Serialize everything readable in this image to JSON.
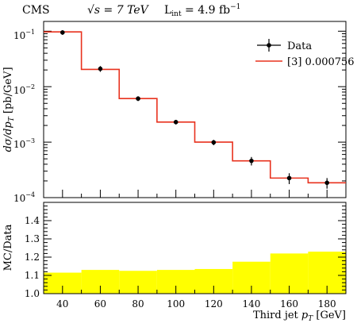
{
  "header": {
    "experiment": "CMS",
    "energy": "√s = 7 TeV",
    "lumi": "L",
    "lumi_sub": "int",
    "lumi_value": " = 4.9 fb",
    "lumi_sup": "−1"
  },
  "colors": {
    "data_marker": "#000000",
    "prediction_line": "#e8321e",
    "ratio_band": "#ffff00"
  },
  "chart_data": [
    {
      "type": "line",
      "panel": "main",
      "ylabel": "dσ/dp_T [pb/GeV]",
      "yscale": "log",
      "ylim": [
        0.0001,
        0.15
      ],
      "xlim": [
        30,
        190
      ],
      "ytick_labels": [
        "10^-1",
        "10^-2",
        "10^-3",
        "10^-4"
      ],
      "bin_edges": [
        30,
        50,
        70,
        90,
        110,
        130,
        150,
        170,
        190
      ],
      "legend": {
        "position": "top-right"
      },
      "series": [
        {
          "name": "Data",
          "style": "points-with-errors",
          "x": [
            40,
            60,
            80,
            100,
            120,
            140,
            160,
            180
          ],
          "y": [
            0.095,
            0.021,
            0.0061,
            0.0023,
            0.00099,
            0.00046,
            0.000225,
            0.000185
          ],
          "err": [
            0.009,
            0.0025,
            0.0006,
            0.00022,
            0.00011,
            8e-05,
            5e-05,
            4e-05
          ]
        },
        {
          "name": "[3] 0.000756",
          "style": "step",
          "values": [
            0.097,
            0.0205,
            0.0061,
            0.0023,
            0.001,
            0.00046,
            0.000225,
            0.000185
          ]
        }
      ]
    },
    {
      "type": "area",
      "panel": "ratio",
      "ylabel": "MC/Data",
      "xlabel": "Third jet p_T [GeV]",
      "ylim": [
        1.0,
        1.5
      ],
      "yticks": [
        1.0,
        1.1,
        1.2,
        1.3,
        1.4
      ],
      "xticks": [
        40,
        60,
        80,
        100,
        120,
        140,
        160,
        180
      ],
      "bin_edges": [
        30,
        50,
        70,
        90,
        110,
        130,
        150,
        170,
        190
      ],
      "band_upper": [
        1.115,
        1.13,
        1.125,
        1.13,
        1.135,
        1.175,
        1.22,
        1.23
      ]
    }
  ]
}
